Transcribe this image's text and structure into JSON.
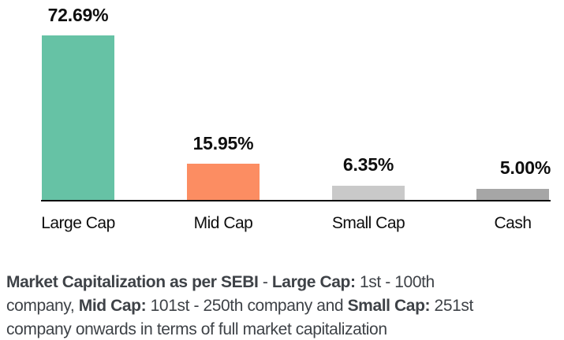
{
  "chart_data": {
    "type": "bar",
    "categories": [
      "Large Cap",
      "Mid Cap",
      "Small Cap",
      "Cash"
    ],
    "values": [
      72.69,
      15.95,
      6.35,
      5.0
    ],
    "value_labels": [
      "72.69%",
      "15.95%",
      "6.35%",
      "5.00%"
    ],
    "colors": [
      "#66C2A5",
      "#FC8D62",
      "#C9C9C9",
      "#A6A6A6"
    ],
    "title": "",
    "xlabel": "",
    "ylabel": "",
    "ylim": [
      0,
      80
    ],
    "grid": false,
    "legend": false,
    "axis_color": "#0c0c0c"
  },
  "footer": {
    "line1": {
      "seg1_bold": "Market Capitalization as per SEBI",
      "seg2": " - ",
      "seg3_bold": "Large Cap:",
      "seg4": " 1st - 100th"
    },
    "line2": {
      "seg1": "company, ",
      "seg2_bold": "Mid Cap:",
      "seg3": " 101st - 250th company and ",
      "seg4_bold": "Small Cap:",
      "seg5": " 251st"
    },
    "line3": {
      "seg1": "company onwards in terms of full market capitalization"
    }
  }
}
